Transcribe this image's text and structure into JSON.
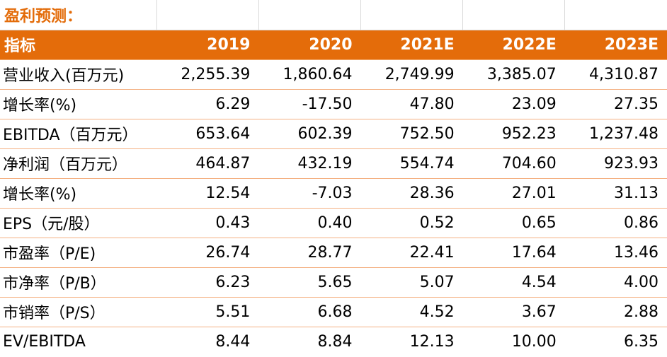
{
  "title": "盈利预测：",
  "header": {
    "label": "指标",
    "years": [
      "2019",
      "2020",
      "2021E",
      "2022E",
      "2023E"
    ]
  },
  "rows": [
    {
      "label": "营业收入(百万元)",
      "values": [
        "2,255.39",
        "1,860.64",
        "2,749.99",
        "3,385.07",
        "4,310.87"
      ]
    },
    {
      "label": "增长率(%)",
      "values": [
        "6.29",
        "-17.50",
        "47.80",
        "23.09",
        "27.35"
      ]
    },
    {
      "label": "EBITDA（百万元）",
      "values": [
        "653.64",
        "602.39",
        "752.50",
        "952.23",
        "1,237.48"
      ]
    },
    {
      "label": "净利润（百万元）",
      "values": [
        "464.87",
        "432.19",
        "554.74",
        "704.60",
        "923.93"
      ]
    },
    {
      "label": "增长率(%)",
      "values": [
        "12.54",
        "-7.03",
        "28.36",
        "27.01",
        "31.13"
      ]
    },
    {
      "label": "EPS（元/股）",
      "values": [
        "0.43",
        "0.40",
        "0.52",
        "0.65",
        "0.86"
      ]
    },
    {
      "label": "市盈率（P/E)",
      "values": [
        "26.74",
        "28.77",
        "22.41",
        "17.64",
        "13.46"
      ]
    },
    {
      "label": "市净率（P/B）",
      "values": [
        "6.23",
        "5.65",
        "5.07",
        "4.54",
        "4.00"
      ]
    },
    {
      "label": "市销率（P/S）",
      "values": [
        "5.51",
        "6.68",
        "4.52",
        "3.67",
        "2.88"
      ]
    },
    {
      "label": "EV/EBITDA",
      "values": [
        "8.44",
        "8.84",
        "12.13",
        "10.00",
        "6.35"
      ]
    }
  ],
  "colors": {
    "header_bg": "#e46c0a",
    "title_text": "#e36c0a",
    "row_divider": "#f4b183"
  }
}
